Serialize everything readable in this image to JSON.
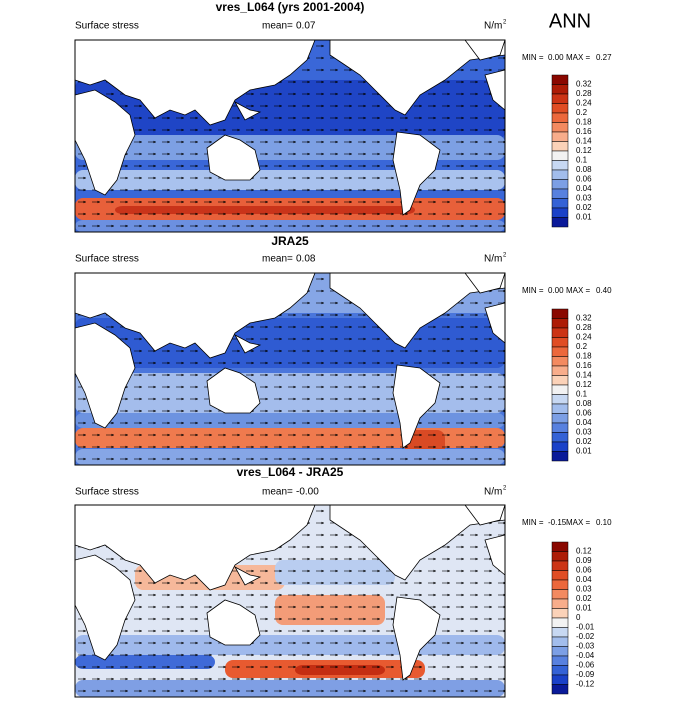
{
  "figure_label": "ANN",
  "panels": [
    {
      "title": "vres_L064 (yrs 2001-2004)",
      "variable": "Surface stress",
      "mean_label": "mean=",
      "mean": "0.07",
      "units": "N/m",
      "units_exp": "2",
      "min_label": "MIN =",
      "min": "0.00",
      "max_label": "MAX =",
      "max": "0.27",
      "colorbar": {
        "colors": [
          "#8a0800",
          "#ad1c06",
          "#cc3415",
          "#e04d24",
          "#ec683c",
          "#f38a60",
          "#f8ad8b",
          "#fbd2b8",
          "#f2f2f2",
          "#c7d8f2",
          "#a2bdec",
          "#7c9fe5",
          "#5881df",
          "#3462d6",
          "#1a41c8",
          "#0a1a99"
        ],
        "labels": [
          "0.32",
          "0.28",
          "0.24",
          "0.2",
          "0.18",
          "0.16",
          "0.14",
          "0.12",
          "0.1",
          "0.08",
          "0.06",
          "0.04",
          "0.03",
          "0.02",
          "0.01"
        ]
      }
    },
    {
      "title": "JRA25",
      "variable": "Surface stress",
      "mean_label": "mean=",
      "mean": "0.08",
      "units": "N/m",
      "units_exp": "2",
      "min_label": "MIN =",
      "min": "0.00",
      "max_label": "MAX =",
      "max": "0.40",
      "colorbar": {
        "colors": [
          "#8a0800",
          "#ad1c06",
          "#cc3415",
          "#e04d24",
          "#ec683c",
          "#f38a60",
          "#f8ad8b",
          "#fbd2b8",
          "#f2f2f2",
          "#c7d8f2",
          "#a2bdec",
          "#7c9fe5",
          "#5881df",
          "#3462d6",
          "#1a41c8",
          "#0a1a99"
        ],
        "labels": [
          "0.32",
          "0.28",
          "0.24",
          "0.2",
          "0.18",
          "0.16",
          "0.14",
          "0.12",
          "0.1",
          "0.08",
          "0.06",
          "0.04",
          "0.03",
          "0.02",
          "0.01"
        ]
      }
    },
    {
      "title": "vres_L064 - JRA25",
      "variable": "Surface stress",
      "mean_label": "mean=",
      "mean": "-0.00",
      "units": "N/m",
      "units_exp": "2",
      "min_label": "MIN =",
      "min": "-0.15",
      "max_label": "MAX =",
      "max": "0.10",
      "colorbar": {
        "colors": [
          "#8a0800",
          "#ad1c06",
          "#cc3415",
          "#e04d24",
          "#ec683c",
          "#f38a60",
          "#f8ad8b",
          "#fbd2b8",
          "#f2f2f2",
          "#c7d8f2",
          "#a2bdec",
          "#7c9fe5",
          "#5881df",
          "#3462d6",
          "#1a41c8",
          "#0a1a99"
        ],
        "labels": [
          "0.12",
          "0.09",
          "0.06",
          "0.04",
          "0.03",
          "0.02",
          "0.01",
          "0",
          "-0.01",
          "-0.02",
          "-0.03",
          "-0.04",
          "-0.06",
          "-0.09",
          "-0.12"
        ]
      }
    }
  ]
}
